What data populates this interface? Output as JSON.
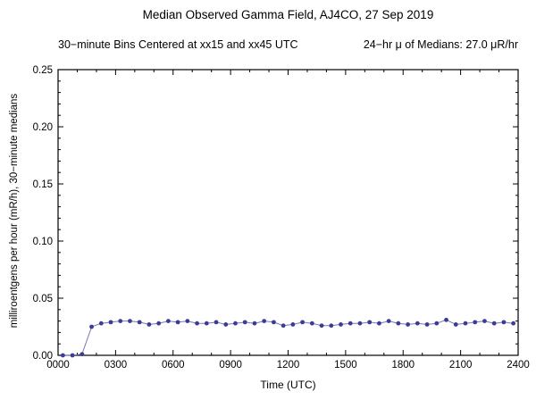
{
  "page": {
    "title": "Median Observed Gamma Field, AJ4CO, 27 Sep 2019",
    "subtitle_left": "30−minute Bins Centered at xx15 and xx45 UTC",
    "subtitle_right": "24−hr μ of Medians: 27.0 μR/hr"
  },
  "chart_data": {
    "type": "line",
    "title": "Median Observed Gamma Field, AJ4CO, 27 Sep 2019",
    "subtitle": "30−minute Bins Centered at xx15 and xx45 UTC",
    "annotation": "24−hr μ of Medians: 27.0 μR/hr",
    "xlabel": "Time (UTC)",
    "ylabel": "milliroentgens per hour (mR/h), 30−minute medians",
    "x_range_minutes": [
      0,
      1440
    ],
    "ylim": [
      0,
      0.25
    ],
    "x_tick_minutes": [
      0,
      180,
      360,
      540,
      720,
      900,
      1080,
      1260,
      1440
    ],
    "x_tick_labels": [
      "0000",
      "0300",
      "0600",
      "0900",
      "1200",
      "1500",
      "1800",
      "2100",
      "2400"
    ],
    "x_minor_step_minutes": 60,
    "y_ticks": [
      0,
      0.05,
      0.1,
      0.15,
      0.2,
      0.25
    ],
    "y_tick_labels": [
      "0.00",
      "0.05",
      "0.10",
      "0.15",
      "0.20",
      "0.25"
    ],
    "y_minor_step": 0.01,
    "grid": false,
    "legend": "none",
    "frame_color": "#000000",
    "marker_color": "#3b3b98",
    "line_color": "#7878b4",
    "x_minutes": [
      15,
      45,
      75,
      105,
      135,
      165,
      195,
      225,
      255,
      285,
      315,
      345,
      375,
      405,
      435,
      465,
      495,
      525,
      555,
      585,
      615,
      645,
      675,
      705,
      735,
      765,
      795,
      825,
      855,
      885,
      915,
      945,
      975,
      1005,
      1035,
      1065,
      1095,
      1125,
      1155,
      1185,
      1215,
      1245,
      1275,
      1305,
      1335,
      1365,
      1395,
      1425
    ],
    "values": [
      0.0,
      0.0,
      0.001,
      0.025,
      0.028,
      0.029,
      0.03,
      0.03,
      0.029,
      0.027,
      0.028,
      0.03,
      0.029,
      0.03,
      0.028,
      0.028,
      0.029,
      0.027,
      0.028,
      0.029,
      0.028,
      0.03,
      0.029,
      0.026,
      0.027,
      0.029,
      0.028,
      0.026,
      0.026,
      0.027,
      0.028,
      0.028,
      0.029,
      0.028,
      0.03,
      0.028,
      0.027,
      0.028,
      0.027,
      0.028,
      0.031,
      0.027,
      0.028,
      0.029,
      0.03,
      0.028,
      0.029,
      0.028
    ]
  }
}
